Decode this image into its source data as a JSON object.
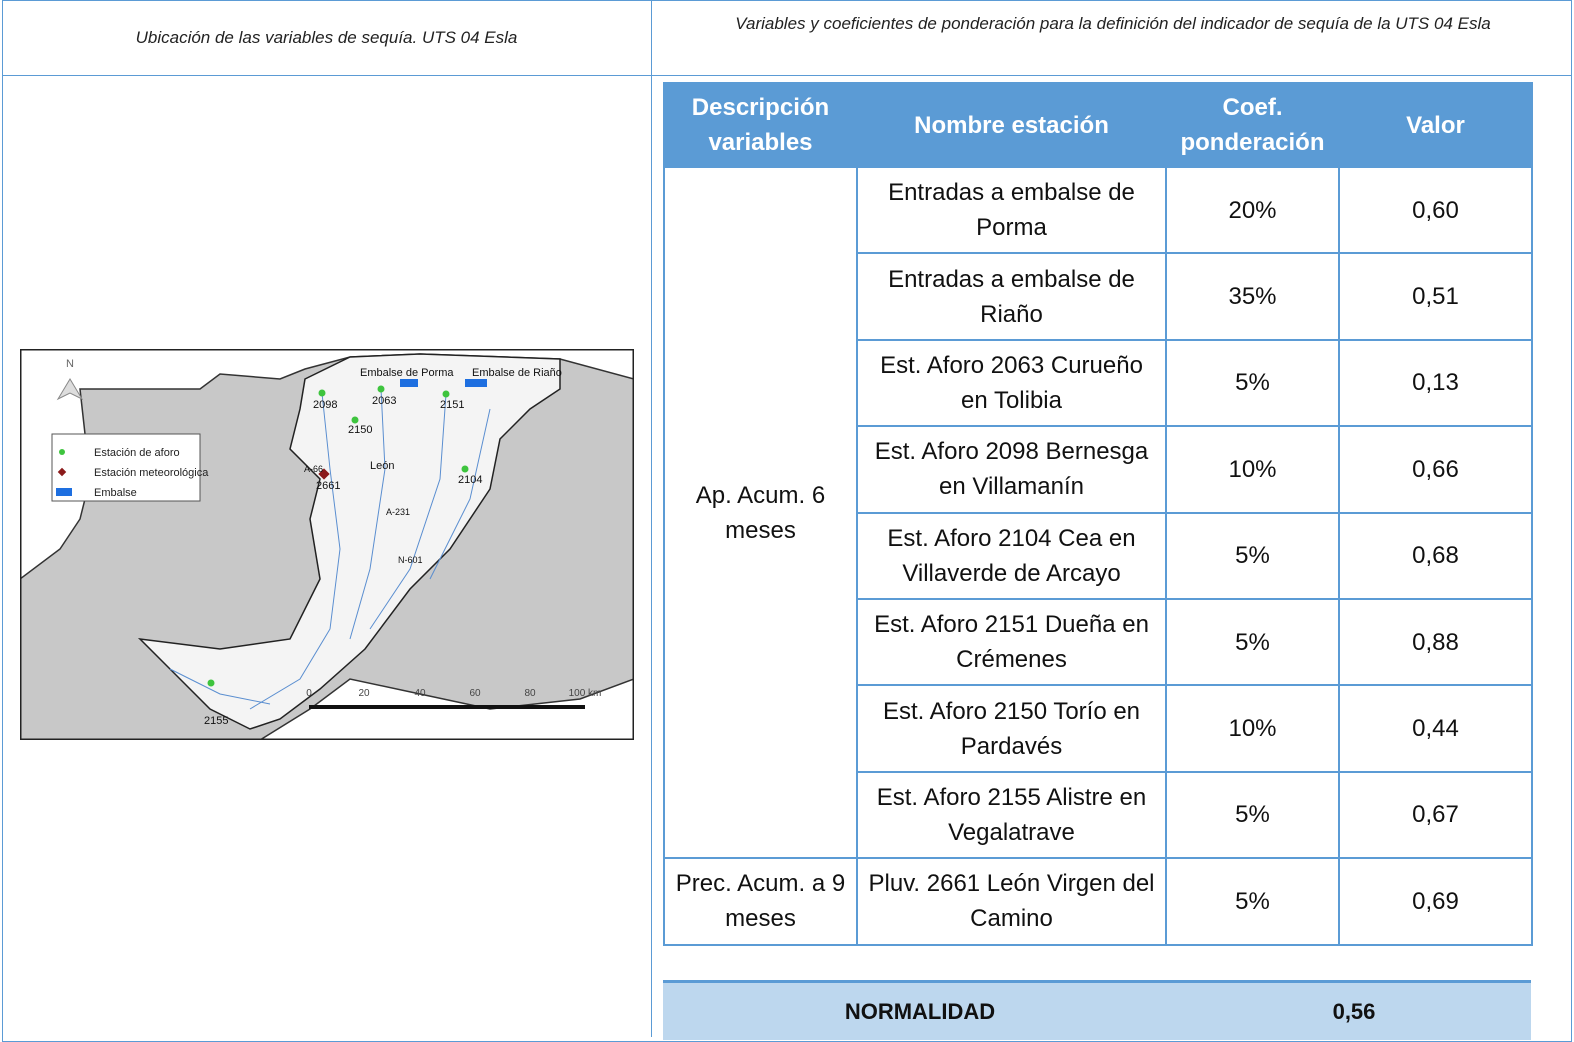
{
  "header": {
    "left_caption": "Ubicación de las variables de sequía. UTS 04 Esla",
    "right_caption": "Variables y coeficientes de ponderación para la definición del indicador de sequía de la UTS 04 Esla"
  },
  "map": {
    "north": "N",
    "legend": [
      "Estación de aforo",
      "Estación meteorológica",
      "Embalse"
    ],
    "labels": [
      "Embalse de Porma",
      "Embalse de Riaño",
      "2098",
      "2063",
      "2151",
      "2150",
      "León",
      "2661",
      "2104",
      "2155",
      "A-66",
      "A-231",
      "N-601"
    ],
    "scale": [
      "0",
      "20",
      "40",
      "60",
      "80",
      "100 km"
    ]
  },
  "table": {
    "columns": [
      "Descripción variables",
      "Nombre estación",
      "Coef. ponderación",
      "Valor"
    ],
    "groups": [
      {
        "variable": "Ap. Acum. 6 meses",
        "rows": [
          [
            "Entradas a embalse de Porma",
            "20%",
            "0,60"
          ],
          [
            "Entradas a embalse de Riaño",
            "35%",
            "0,51"
          ],
          [
            "Est. Aforo 2063 Curueño en Tolibia",
            "5%",
            "0,13"
          ],
          [
            "Est. Aforo 2098 Bernesga en Villamanín",
            "10%",
            "0,66"
          ],
          [
            "Est. Aforo 2104 Cea en Villaverde de Arcayo",
            "5%",
            "0,68"
          ],
          [
            "Est. Aforo 2151 Dueña en Crémenes",
            "5%",
            "0,88"
          ],
          [
            "Est. Aforo 2150 Torío en Pardavés",
            "10%",
            "0,44"
          ],
          [
            "Est. Aforo 2155 Alistre en Vegalatrave",
            "5%",
            "0,67"
          ]
        ]
      },
      {
        "variable": "Prec. Acum. a 9 meses",
        "rows": [
          [
            "Pluv. 2661 León Virgen del Camino",
            "5%",
            "0,69"
          ]
        ]
      }
    ]
  },
  "summary": {
    "label": "NORMALIDAD",
    "value": "0,56"
  }
}
